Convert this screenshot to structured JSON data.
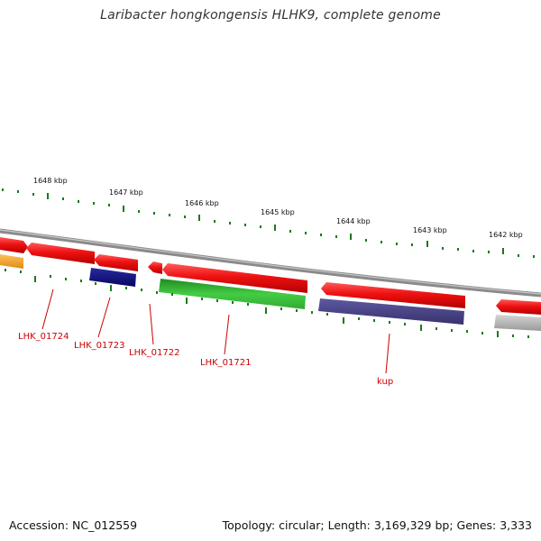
{
  "title": "Laribacter hongkongensis HLHK9, complete genome",
  "footer": {
    "accession": "Accession: NC_012559",
    "summary": "Topology: circular; Length: 3,169,329 bp; Genes: 3,333"
  },
  "colors": {
    "backbone": "#8a8a8a",
    "tick": "#1a7a1a",
    "gene_label": "#cc0000",
    "red_gene": "#ee1111",
    "orange_gene": "#f0a020",
    "navy_gene": "#10107a",
    "green_gene": "#33bb33",
    "slate_gene": "#4a4488",
    "gray_gene": "#b0b0b0"
  },
  "kbp_labels": [
    "1648 kbp",
    "1647 kbp",
    "1646 kbp",
    "1645 kbp",
    "1644 kbp",
    "1643 kbp",
    "1642 kbp"
  ],
  "gene_labels": [
    "LHK_01724",
    "LHK_01723",
    "LHK_01722",
    "LHK_01721",
    "kup"
  ]
}
